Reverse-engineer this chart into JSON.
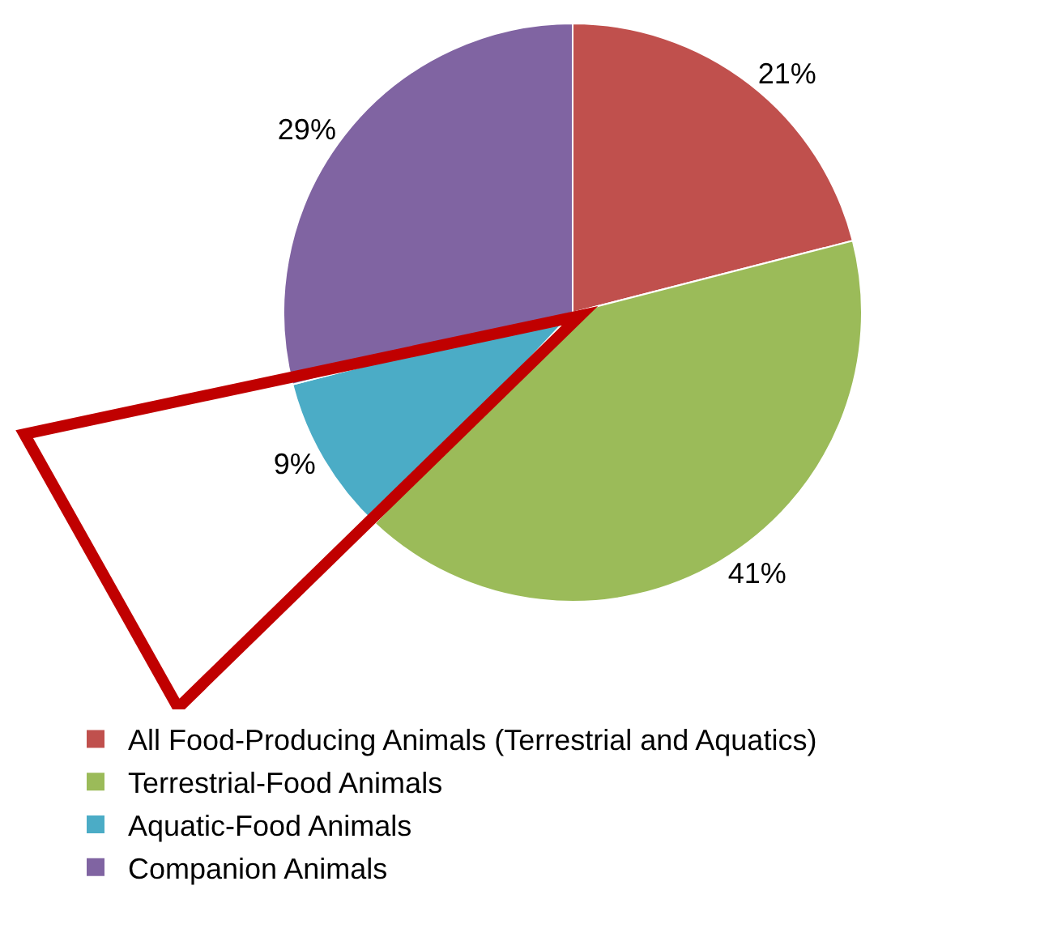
{
  "chart_data": {
    "type": "pie",
    "categories": [
      "All Food-Producing Animals (Terrestrial and Aquatics)",
      "Terrestrial-Food Animals",
      "Aquatic-Food Animals",
      "Companion Animals"
    ],
    "values": [
      21,
      41,
      9,
      29
    ],
    "value_labels": [
      "21%",
      "41%",
      "9%",
      "29%"
    ],
    "colors": [
      "#c0504d",
      "#9bbb59",
      "#4bacc6",
      "#8064a2"
    ],
    "legend": "bottom"
  }
}
